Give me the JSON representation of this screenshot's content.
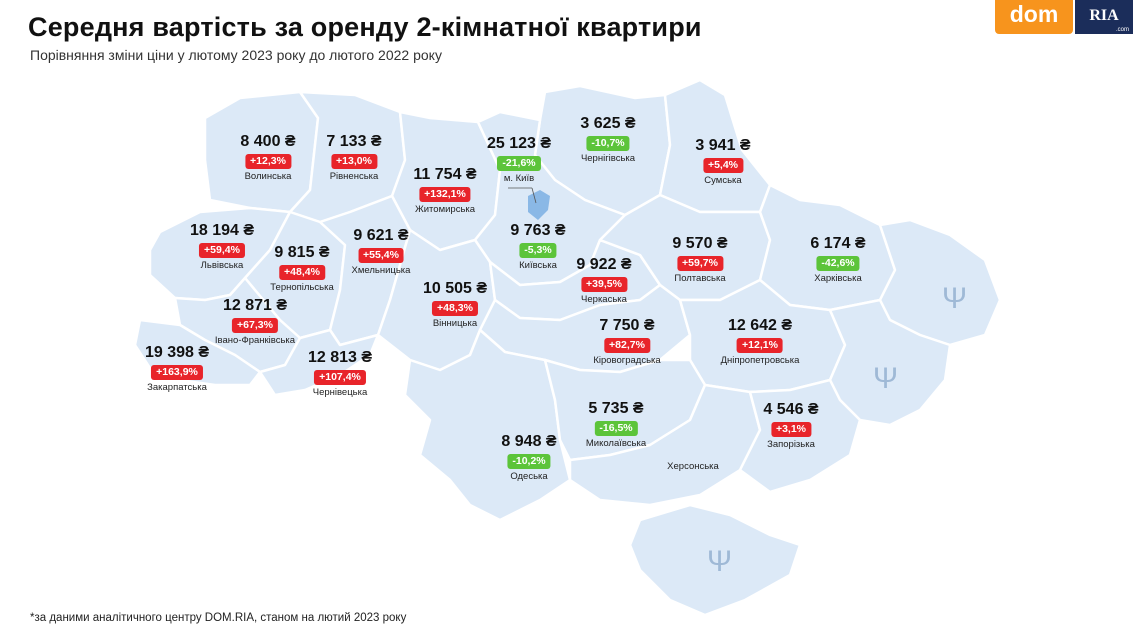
{
  "header": {
    "title": "Середня вартість за оренду 2-кімнатної квартири",
    "subtitle": "Порівняння зміни ціни у лютому 2023 року до лютого 2022 року"
  },
  "logo": {
    "dom": "dom",
    "ria": "RIA",
    "ria_small": ".com"
  },
  "colors": {
    "map_fill": "#dce9f7",
    "map_border": "#ffffff",
    "increase": "#e8242a",
    "decrease": "#5cc43a",
    "kyiv": "#8ab8e6",
    "logo_orange": "#f7941d",
    "logo_navy": "#1b2d5a"
  },
  "regions": [
    {
      "id": "volynska",
      "name": "Волинська",
      "price": "8 400 ₴",
      "change": "+12,3%",
      "trend": "up"
    },
    {
      "id": "rivnenska",
      "name": "Рівненська",
      "price": "7 133 ₴",
      "change": "+13,0%",
      "trend": "up"
    },
    {
      "id": "zhytomyrska",
      "name": "Житомирська",
      "price": "11 754 ₴",
      "change": "+132,1%",
      "trend": "up"
    },
    {
      "id": "kyiv-city",
      "name": "м. Київ",
      "price": "25 123 ₴",
      "change": "-21,6%",
      "trend": "down"
    },
    {
      "id": "chernihivska",
      "name": "Чернігівська",
      "price": "3 625 ₴",
      "change": "-10,7%",
      "trend": "down"
    },
    {
      "id": "sumska",
      "name": "Сумська",
      "price": "3 941 ₴",
      "change": "+5,4%",
      "trend": "up"
    },
    {
      "id": "lvivska",
      "name": "Львівська",
      "price": "18 194 ₴",
      "change": "+59,4%",
      "trend": "up"
    },
    {
      "id": "ternopilska",
      "name": "Тернопільська",
      "price": "9 815 ₴",
      "change": "+48,4%",
      "trend": "up"
    },
    {
      "id": "khmelnytska",
      "name": "Хмельницька",
      "price": "9 621 ₴",
      "change": "+55,4%",
      "trend": "up"
    },
    {
      "id": "kyivska",
      "name": "Київська",
      "price": "9 763 ₴",
      "change": "-5,3%",
      "trend": "down"
    },
    {
      "id": "poltavska",
      "name": "Полтавська",
      "price": "9 570 ₴",
      "change": "+59,7%",
      "trend": "up"
    },
    {
      "id": "kharkivska",
      "name": "Харківська",
      "price": "6 174 ₴",
      "change": "-42,6%",
      "trend": "down"
    },
    {
      "id": "cherkaska",
      "name": "Черкаська",
      "price": "9 922 ₴",
      "change": "+39,5%",
      "trend": "up"
    },
    {
      "id": "vinnytska",
      "name": "Вінницька",
      "price": "10 505 ₴",
      "change": "+48,3%",
      "trend": "up"
    },
    {
      "id": "ivano-frankivska",
      "name": "Івано-Франківська",
      "price": "12 871 ₴",
      "change": "+67,3%",
      "trend": "up"
    },
    {
      "id": "kirovohradska",
      "name": "Кіровоградська",
      "price": "7 750 ₴",
      "change": "+82,7%",
      "trend": "up"
    },
    {
      "id": "dnipropetrovska",
      "name": "Дніпропетровська",
      "price": "12 642 ₴",
      "change": "+12,1%",
      "trend": "up"
    },
    {
      "id": "zakarpatska",
      "name": "Закарпатська",
      "price": "19 398 ₴",
      "change": "+163,9%",
      "trend": "up"
    },
    {
      "id": "chernivetska",
      "name": "Чернівецька",
      "price": "12 813 ₴",
      "change": "+107,4%",
      "trend": "up"
    },
    {
      "id": "mykolaivska",
      "name": "Миколаївська",
      "price": "5 735 ₴",
      "change": "-16,5%",
      "trend": "down"
    },
    {
      "id": "zaporizka",
      "name": "Запорізька",
      "price": "4 546 ₴",
      "change": "+3,1%",
      "trend": "up"
    },
    {
      "id": "odeska",
      "name": "Одеська",
      "price": "8 948 ₴",
      "change": "-10,2%",
      "trend": "down"
    }
  ],
  "unlabeled_regions": [
    {
      "id": "khersonska",
      "name": "Херсонська"
    }
  ],
  "occupied_marker_icon": "trident-icon",
  "footnote": "*за даними аналітичного центру DOM.RIA, станом на лютий 2023 року"
}
